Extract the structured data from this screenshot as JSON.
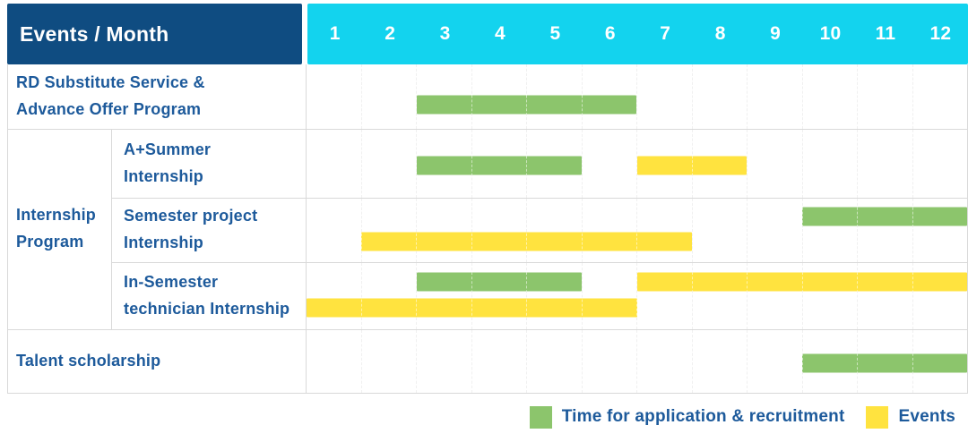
{
  "header": {
    "title": "Events / Month",
    "months": [
      "1",
      "2",
      "3",
      "4",
      "5",
      "6",
      "7",
      "8",
      "9",
      "10",
      "11",
      "12"
    ]
  },
  "legend": {
    "items": [
      {
        "label": "Time for application & recruitment",
        "series": "application",
        "color": "#8cc56c"
      },
      {
        "label": "Events",
        "series": "events",
        "color": "#ffe33f"
      }
    ]
  },
  "colors": {
    "header_bg": "#0f4c81",
    "months_bg": "#13d3ee",
    "label_text": "#1d5a9b",
    "green": "#8cc56c",
    "yellow": "#ffe33f",
    "grid": "#d9d9d9"
  },
  "chart_data": {
    "type": "bar",
    "variant": "gantt-schedule-table",
    "title": "Events / Month",
    "x_label": "Month",
    "x_ticks": [
      "1",
      "2",
      "3",
      "4",
      "5",
      "6",
      "7",
      "8",
      "9",
      "10",
      "11",
      "12"
    ],
    "x_range": [
      1,
      12
    ],
    "grid": true,
    "legend_position": "bottom-right",
    "series_legend": [
      {
        "name": "Time for application & recruitment",
        "color": "#8cc56c"
      },
      {
        "name": "Events",
        "color": "#ffe33f"
      }
    ],
    "group_label": "Internship\nProgram",
    "rows": [
      {
        "group": "",
        "label": "RD Substitute Service &\nAdvance Offer Program",
        "bars": [
          {
            "series": "application",
            "color": "green",
            "start": 3,
            "end": 6,
            "lane": "low"
          }
        ]
      },
      {
        "group": "Internship Program",
        "label": "A+Summer\nInternship",
        "bars": [
          {
            "series": "application",
            "color": "green",
            "start": 3,
            "end": 5,
            "lane": "mid"
          },
          {
            "series": "events",
            "color": "yellow",
            "start": 7,
            "end": 8,
            "lane": "mid"
          }
        ]
      },
      {
        "group": "Internship Program",
        "label": "Semester project\nInternship",
        "bars": [
          {
            "series": "application",
            "color": "green",
            "start": 10,
            "end": 12,
            "lane": "top"
          },
          {
            "series": "events",
            "color": "yellow",
            "start": 2,
            "end": 7,
            "lane": "bottom"
          }
        ]
      },
      {
        "group": "Internship Program",
        "label": "In-Semester\ntechnician Internship",
        "bars": [
          {
            "series": "application",
            "color": "green",
            "start": 3,
            "end": 5,
            "lane": "top"
          },
          {
            "series": "events",
            "color": "yellow",
            "start": 7,
            "end": 12,
            "lane": "top"
          },
          {
            "series": "events",
            "color": "yellow",
            "start": 1,
            "end": 6,
            "lane": "bottom"
          }
        ]
      },
      {
        "group": "",
        "label": "Talent scholarship",
        "bars": [
          {
            "series": "application",
            "color": "green",
            "start": 10,
            "end": 12,
            "lane": "mid"
          }
        ]
      }
    ]
  }
}
